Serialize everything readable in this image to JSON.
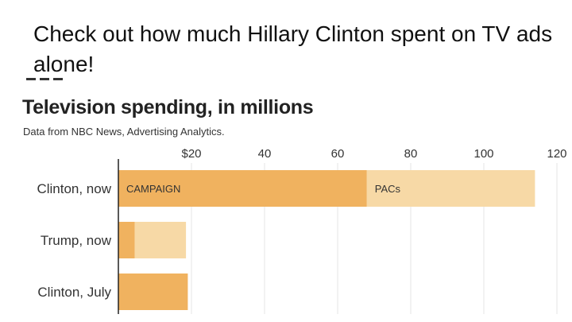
{
  "headline": "Check out how much Hillary Clinton spent on TV ads alone!",
  "chart_data": {
    "type": "bar",
    "orientation": "horizontal",
    "stacked": true,
    "title": "Television spending, in millions",
    "subtitle": "Data from NBC News, Advertising Analytics.",
    "x_ticks": [
      "$20",
      "40",
      "60",
      "80",
      "100",
      "120"
    ],
    "x_tick_values": [
      20,
      40,
      60,
      80,
      100,
      120
    ],
    "xlim": [
      0,
      125
    ],
    "categories": [
      "Clinton, now",
      "Trump, now",
      "Clinton, July"
    ],
    "series": [
      {
        "name": "CAMPAIGN",
        "color": "#f0b25f",
        "values": [
          68,
          4.5,
          19
        ]
      },
      {
        "name": "PACs",
        "color": "#f7d9a6",
        "values": [
          46,
          14,
          0
        ]
      }
    ],
    "annotations": [
      {
        "text": "CAMPAIGN",
        "category": "Clinton, now",
        "series": "CAMPAIGN"
      },
      {
        "text": "PACs",
        "category": "Clinton, now",
        "series": "PACs"
      }
    ]
  }
}
